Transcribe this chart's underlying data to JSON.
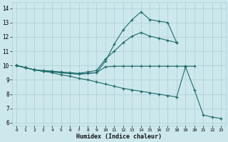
{
  "xlabel": "Humidex (Indice chaleur)",
  "bg_color": "#cde8ec",
  "grid_color": "#aacdd4",
  "line_color": "#1e6b6b",
  "xlim": [
    -0.5,
    23.5
  ],
  "ylim": [
    5.8,
    14.4
  ],
  "yticks": [
    6,
    7,
    8,
    9,
    10,
    11,
    12,
    13,
    14
  ],
  "xticks": [
    0,
    1,
    2,
    3,
    4,
    5,
    6,
    7,
    8,
    9,
    10,
    11,
    12,
    13,
    14,
    15,
    16,
    17,
    18,
    19,
    20,
    21,
    22,
    23
  ],
  "lines": [
    {
      "x": [
        0,
        1,
        2,
        3,
        4,
        5,
        6,
        7,
        8,
        9,
        10,
        11,
        12,
        13,
        14,
        15,
        16,
        17,
        18
      ],
      "y": [
        10.0,
        9.85,
        9.7,
        9.6,
        9.6,
        9.5,
        9.45,
        9.4,
        9.45,
        9.5,
        10.3,
        11.5,
        12.5,
        13.2,
        13.75,
        13.2,
        13.1,
        13.0,
        11.6
      ]
    },
    {
      "x": [
        0,
        1,
        2,
        3,
        4,
        5,
        6,
        7,
        8,
        9,
        10,
        11,
        12,
        13,
        14,
        15,
        16,
        17,
        18
      ],
      "y": [
        10.0,
        9.85,
        9.7,
        9.65,
        9.6,
        9.55,
        9.5,
        9.45,
        9.55,
        9.65,
        10.45,
        11.0,
        11.6,
        12.05,
        12.3,
        12.05,
        11.9,
        11.75,
        11.6
      ]
    },
    {
      "x": [
        0,
        1,
        2,
        3,
        4,
        5,
        6,
        7,
        8,
        9,
        10,
        11,
        12,
        13,
        14,
        15,
        16,
        17,
        18,
        19,
        20
      ],
      "y": [
        10.0,
        9.85,
        9.7,
        9.6,
        9.55,
        9.5,
        9.45,
        9.4,
        9.45,
        9.5,
        9.9,
        9.95,
        9.95,
        9.95,
        9.95,
        9.95,
        9.95,
        9.95,
        9.95,
        9.95,
        9.95
      ]
    },
    {
      "x": [
        0,
        1,
        2,
        3,
        4,
        5,
        6,
        7,
        8,
        9,
        10,
        11,
        12,
        13,
        14,
        15,
        16,
        17,
        18,
        19,
        20,
        21,
        22,
        23
      ],
      "y": [
        10.0,
        9.85,
        9.7,
        9.6,
        9.5,
        9.35,
        9.25,
        9.1,
        9.0,
        8.85,
        8.7,
        8.55,
        8.4,
        8.3,
        8.2,
        8.1,
        8.0,
        7.9,
        7.8,
        9.9,
        8.3,
        6.55,
        6.4,
        6.3
      ]
    }
  ]
}
